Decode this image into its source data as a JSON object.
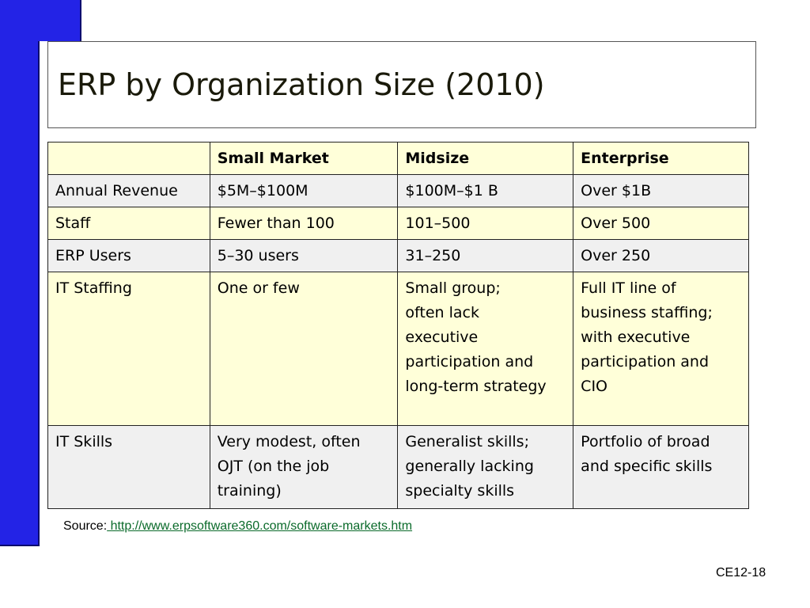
{
  "slide": {
    "title": "ERP by Organization Size (2010)",
    "table": {
      "headers": [
        "",
        "Small Market",
        "Midsize",
        "Enterprise"
      ],
      "rows": [
        [
          "Annual Revenue",
          "$5M–$100M",
          "$100M–$1 B",
          "Over $1B"
        ],
        [
          "Staff",
          "Fewer than 100",
          "101–500",
          "Over 500"
        ],
        [
          "ERP Users",
          "5–30 users",
          "31–250",
          "Over 250"
        ],
        [
          "IT Staffing",
          "One or few",
          "Small group;\noften lack\nexecutive\nparticipation and\nlong-term strategy",
          "Full IT line of\nbusiness staffing;\nwith executive\nparticipation and\nCIO"
        ],
        [
          "IT Skills",
          "Very modest, often\nOJT (on the job\ntraining)",
          "Generalist skills;\ngenerally lacking\nspecialty skills",
          "Portfolio of broad\nand specific skills"
        ]
      ]
    },
    "source_label": "Source:",
    "source_link": " http://www.erpsoftware360.com/software-markets.htm",
    "slide_number": "CE12-18"
  },
  "colors": {
    "accent_blue": "#2323e6",
    "header_row_bg": "#ffffd9",
    "alt_row_bg": "#f0f0f0",
    "link_color": "#0a6a2a"
  }
}
